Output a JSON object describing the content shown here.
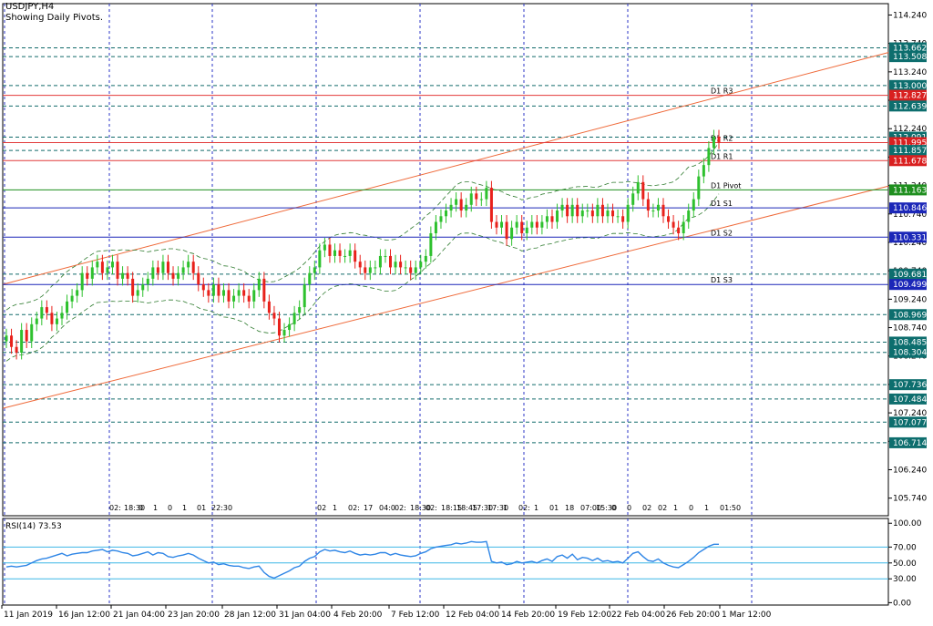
{
  "header": {
    "symbol_timeframe": "USDJPY,H4",
    "subtitle": "Showing Daily Pivots."
  },
  "colors": {
    "up_candle": "#2ec12e",
    "down_candle": "#e8211b",
    "grid": "#2b36c7",
    "channel": "#ef6a3a",
    "resistance": "#e23a3a",
    "support": "#1b27b8",
    "pivot": "#1f8f1f",
    "level_dashed": "#126b6b",
    "rsi_line": "#2f86e6",
    "rsi_levels": "#3fb7e6",
    "bands": "#2d7a2d"
  },
  "chart_data": [
    {
      "type": "candlestick",
      "symbol": "USDJPY",
      "timeframe": "H4",
      "ylim": [
        105.43,
        114.44
      ],
      "y_ticks": [
        "114.240",
        "113.740",
        "113.240",
        "112.740",
        "112.240",
        "111.740",
        "111.240",
        "110.740",
        "110.240",
        "109.740",
        "109.240",
        "108.740",
        "108.240",
        "107.740",
        "107.240",
        "106.740",
        "106.240",
        "105.740"
      ],
      "x_ticks": [
        "11 Jan 2019",
        "16 Jan 12:00",
        "21 Jan 04:00",
        "23 Jan 20:00",
        "28 Jan 12:00",
        "31 Jan 04:00",
        "4 Feb 20:00",
        "7 Feb 12:00",
        "12 Feb 04:00",
        "14 Feb 20:00",
        "19 Feb 12:00",
        "22 Feb 04:00",
        "26 Feb 20:00",
        "1 Mar 12:00"
      ],
      "pivots": [
        {
          "label": "D1 R3",
          "value": 112.827,
          "kind": "resistance"
        },
        {
          "label": "D1 R2",
          "value": 111.995,
          "kind": "resistance"
        },
        {
          "label": "D1 R1",
          "value": 111.678,
          "kind": "resistance"
        },
        {
          "label": "D1 Pivot",
          "value": 111.163,
          "kind": "pivot"
        },
        {
          "label": "D1 S1",
          "value": 110.846,
          "kind": "support"
        },
        {
          "label": "D1 S2",
          "value": 110.331,
          "kind": "support"
        },
        {
          "label": "D1 S3",
          "value": 109.499,
          "kind": "support"
        }
      ],
      "levels": [
        113.662,
        113.508,
        113.0,
        112.639,
        112.091,
        111.857,
        109.681,
        108.969,
        108.485,
        108.304,
        107.736,
        107.484,
        107.077,
        106.714
      ],
      "price_labels": [
        "113.662",
        "113.508",
        "113.000",
        "112.827",
        "112.639",
        "112.091",
        "111.995",
        "111.857",
        "111.678",
        "111.163",
        "110.846",
        "110.331",
        "109.681",
        "109.499",
        "108.969",
        "108.485",
        "108.304",
        "107.736",
        "107.484",
        "107.077",
        "106.714"
      ],
      "channel_lines": [
        {
          "x": [
            "11 Jan 2019",
            "4 Mar 2019"
          ],
          "y": [
            109.5,
            113.58
          ]
        },
        {
          "x": [
            "11 Jan 2019",
            "4 Mar 2019"
          ],
          "y": [
            107.32,
            111.23
          ]
        }
      ],
      "session_markers": [
        "02:",
        "18:30",
        "0",
        "1",
        "0",
        "1",
        "01",
        "22:30",
        "02",
        "1",
        "02:",
        "17",
        "04:0",
        "02:",
        "18:30",
        "02:",
        "18:15",
        "18:45",
        "17:30",
        "17:30",
        "1",
        "02:",
        "1",
        "01",
        "18",
        "07:00",
        "15:30",
        "0",
        "0",
        "02",
        "02",
        "1",
        "0",
        "1",
        "01:50"
      ],
      "close": [
        108.6,
        108.4,
        108.3,
        108.7,
        108.5,
        108.8,
        108.9,
        109.1,
        109.0,
        108.8,
        108.9,
        109.0,
        109.2,
        109.3,
        109.4,
        109.7,
        109.6,
        109.8,
        109.9,
        109.7,
        109.8,
        109.9,
        109.6,
        109.7,
        109.6,
        109.3,
        109.4,
        109.5,
        109.6,
        109.8,
        109.7,
        109.9,
        109.7,
        109.6,
        109.7,
        109.8,
        109.9,
        109.7,
        109.5,
        109.4,
        109.3,
        109.5,
        109.3,
        109.4,
        109.2,
        109.3,
        109.4,
        109.3,
        109.2,
        109.4,
        109.6,
        109.2,
        109.0,
        108.9,
        108.6,
        108.7,
        108.8,
        109.0,
        109.1,
        109.5,
        109.7,
        109.8,
        110.1,
        110.2,
        110.0,
        110.1,
        110.0,
        110.0,
        110.1,
        109.9,
        109.8,
        109.7,
        109.8,
        109.8,
        110.0,
        110.0,
        109.8,
        109.9,
        109.8,
        109.8,
        109.7,
        109.8,
        109.9,
        110.0,
        110.4,
        110.6,
        110.7,
        110.8,
        110.9,
        111.0,
        110.8,
        110.9,
        111.1,
        111.0,
        111.0,
        111.2,
        110.6,
        110.5,
        110.6,
        110.3,
        110.5,
        110.6,
        110.4,
        110.5,
        110.6,
        110.5,
        110.6,
        110.7,
        110.6,
        110.8,
        110.9,
        110.7,
        110.9,
        110.7,
        110.8,
        110.8,
        110.7,
        110.9,
        110.7,
        110.8,
        110.7,
        110.7,
        110.6,
        110.9,
        111.1,
        111.3,
        111.0,
        110.8,
        110.8,
        110.9,
        110.7,
        110.6,
        110.5,
        110.4,
        110.6,
        110.8,
        111.0,
        111.4,
        111.6,
        111.9,
        112.1,
        112.0
      ]
    },
    {
      "type": "line",
      "indicator": "RSI(14)",
      "title": "RSI(14) 73.53",
      "last_value": 73.53,
      "ylim": [
        -3,
        106
      ],
      "y_ticks": [
        "100.00",
        "70.00",
        "50.00",
        "30.00",
        "0.00"
      ],
      "levels": [
        70,
        50,
        30
      ],
      "values": [
        45,
        46,
        45,
        46,
        47,
        50,
        53,
        55,
        56,
        58,
        60,
        62,
        59,
        61,
        62,
        63,
        63,
        65,
        66,
        67,
        64,
        66,
        65,
        63,
        62,
        59,
        60,
        62,
        64,
        60,
        63,
        62,
        58,
        57,
        59,
        60,
        62,
        60,
        56,
        53,
        50,
        51,
        48,
        49,
        47,
        46,
        46,
        44,
        43,
        45,
        46,
        38,
        33,
        31,
        34,
        37,
        40,
        44,
        46,
        52,
        56,
        58,
        64,
        67,
        65,
        66,
        64,
        63,
        65,
        62,
        60,
        61,
        60,
        61,
        63,
        63,
        60,
        62,
        60,
        59,
        58,
        59,
        62,
        64,
        68,
        70,
        71,
        72,
        73,
        75,
        74,
        75,
        77,
        76,
        76,
        77,
        52,
        50,
        51,
        48,
        49,
        52,
        50,
        51,
        52,
        50,
        53,
        55,
        52,
        58,
        60,
        56,
        61,
        54,
        57,
        56,
        53,
        56,
        52,
        53,
        51,
        52,
        50,
        56,
        62,
        64,
        58,
        53,
        52,
        55,
        50,
        47,
        45,
        44,
        48,
        52,
        57,
        63,
        67,
        71,
        73.53,
        73.53
      ]
    }
  ]
}
